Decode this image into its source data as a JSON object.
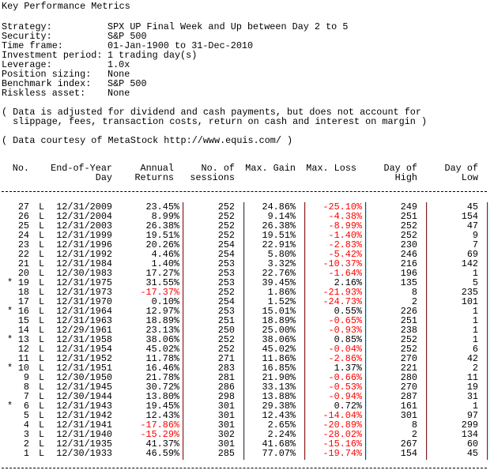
{
  "title": "Key Performance Metrics",
  "settings": [
    {
      "label": "Strategy:",
      "value": "SPX UP Final Week and Up between Day 2 to 5"
    },
    {
      "label": "Security:",
      "value": "S&P 500"
    },
    {
      "label": "Time frame:",
      "value": "01-Jan-1900 to 31-Dec-2010"
    },
    {
      "label": "Investment period:",
      "value": "1 trading day(s)"
    },
    {
      "label": "Leverage:",
      "value": "1.0x"
    },
    {
      "label": "Position sizing:",
      "value": "None"
    },
    {
      "label": "Benchmark index:",
      "value": "S&P 500"
    },
    {
      "label": "Riskless asset:",
      "value": "None"
    }
  ],
  "notes": {
    "line1": "( Data is adjusted for dividend and cash payments, but does not account for",
    "line2": "  slippage, fees, transaction costs, return on cash and interest on margin )",
    "courtesy": "( Data courtesy of MetaStock http://www.equis.com/ )"
  },
  "colors": {
    "negative": "#ff0000",
    "separator": "#8b1a1a"
  },
  "table": {
    "headers": [
      {
        "l1": "No.",
        "l2": ""
      },
      {
        "l1": "End-of-Year",
        "l2": "Day"
      },
      {
        "l1": "Annual",
        "l2": "Returns"
      },
      {
        "l1": "No. of",
        "l2": "sessions"
      },
      {
        "l1": "Max. Gain",
        "l2": ""
      },
      {
        "l1": "Max. Loss",
        "l2": ""
      },
      {
        "l1": "Day of",
        "l2": "High"
      },
      {
        "l1": "Day of",
        "l2": "Low"
      }
    ],
    "rows": [
      [
        "",
        "27",
        "L",
        "12/31/2009",
        "23.45%",
        "252",
        "24.86%",
        "-25.10%",
        "249",
        "45"
      ],
      [
        "",
        "26",
        "L",
        "12/31/2004",
        "8.99%",
        "252",
        "9.14%",
        "-4.38%",
        "251",
        "154"
      ],
      [
        "",
        "25",
        "L",
        "12/31/2003",
        "26.38%",
        "252",
        "26.38%",
        "-8.99%",
        "252",
        "47"
      ],
      [
        "",
        "24",
        "L",
        "12/31/1999",
        "19.51%",
        "252",
        "19.51%",
        "-1.40%",
        "252",
        "9"
      ],
      [
        "",
        "23",
        "L",
        "12/31/1996",
        "20.26%",
        "254",
        "22.91%",
        "-2.83%",
        "230",
        "7"
      ],
      [
        "",
        "22",
        "L",
        "12/31/1992",
        "4.46%",
        "254",
        "5.80%",
        "-5.42%",
        "246",
        "69"
      ],
      [
        "",
        "21",
        "L",
        "12/31/1984",
        "1.40%",
        "253",
        "3.32%",
        "-10.37%",
        "216",
        "142"
      ],
      [
        "",
        "20",
        "L",
        "12/30/1983",
        "17.27%",
        "253",
        "22.76%",
        "-1.64%",
        "196",
        "1"
      ],
      [
        "*",
        "19",
        "L",
        "12/31/1975",
        "31.55%",
        "253",
        "39.45%",
        "2.16%",
        "135",
        "5"
      ],
      [
        "",
        "18",
        "L",
        "12/31/1973",
        "-17.37%",
        "252",
        "1.86%",
        "-21.93%",
        "8",
        "235"
      ],
      [
        "",
        "17",
        "L",
        "12/31/1970",
        "0.10%",
        "254",
        "1.52%",
        "-24.73%",
        "2",
        "101"
      ],
      [
        "*",
        "16",
        "L",
        "12/31/1964",
        "12.97%",
        "253",
        "15.01%",
        "0.55%",
        "226",
        "1"
      ],
      [
        "",
        "15",
        "L",
        "12/31/1963",
        "18.89%",
        "251",
        "18.89%",
        "-0.65%",
        "251",
        "1"
      ],
      [
        "",
        "14",
        "L",
        "12/29/1961",
        "23.13%",
        "250",
        "25.00%",
        "-0.93%",
        "238",
        "1"
      ],
      [
        "*",
        "13",
        "L",
        "12/31/1958",
        "38.06%",
        "252",
        "38.06%",
        "0.85%",
        "252",
        "1"
      ],
      [
        "",
        "12",
        "L",
        "12/31/1954",
        "45.02%",
        "252",
        "45.02%",
        "-0.04%",
        "252",
        "6"
      ],
      [
        "",
        "11",
        "L",
        "12/31/1952",
        "11.78%",
        "271",
        "11.86%",
        "-2.86%",
        "270",
        "42"
      ],
      [
        "*",
        "10",
        "L",
        "12/31/1951",
        "16.46%",
        "283",
        "16.85%",
        "1.37%",
        "221",
        "2"
      ],
      [
        "",
        "9",
        "L",
        "12/30/1950",
        "21.78%",
        "281",
        "21.90%",
        "-0.66%",
        "280",
        "11"
      ],
      [
        "",
        "8",
        "L",
        "12/31/1945",
        "30.72%",
        "286",
        "33.13%",
        "-0.53%",
        "270",
        "19"
      ],
      [
        "",
        "7",
        "L",
        "12/30/1944",
        "13.80%",
        "298",
        "13.88%",
        "-0.94%",
        "287",
        "31"
      ],
      [
        "*",
        "6",
        "L",
        "12/31/1943",
        "19.45%",
        "301",
        "29.38%",
        "0.72%",
        "161",
        "1"
      ],
      [
        "",
        "5",
        "L",
        "12/31/1942",
        "12.43%",
        "301",
        "12.43%",
        "-14.04%",
        "301",
        "97"
      ],
      [
        "",
        "4",
        "L",
        "12/31/1941",
        "-17.86%",
        "301",
        "2.65%",
        "-20.89%",
        "8",
        "299"
      ],
      [
        "",
        "3",
        "L",
        "12/31/1940",
        "-15.29%",
        "302",
        "2.24%",
        "-28.02%",
        "2",
        "134"
      ],
      [
        "",
        "2",
        "L",
        "12/31/1935",
        "41.37%",
        "301",
        "41.68%",
        "-15.16%",
        "267",
        "60"
      ],
      [
        "",
        "1",
        "L",
        "12/30/1933",
        "46.59%",
        "285",
        "77.07%",
        "-19.74%",
        "154",
        "45"
      ]
    ]
  }
}
